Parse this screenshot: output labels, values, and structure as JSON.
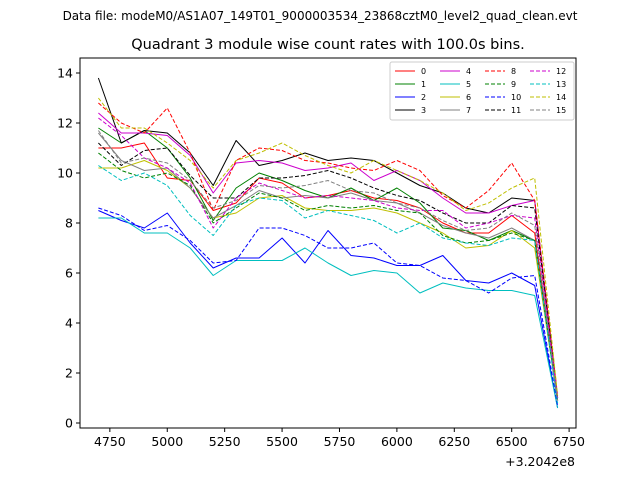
{
  "chart_data": {
    "type": "line",
    "suptitle": "Data file: modeM0/AS1A07_149T01_9000003534_23868cztM0_level2_quad_clean.evt",
    "title": "Quadrant 3 module wise count rates with 100.0s bins.",
    "xlabel": "",
    "ylabel": "",
    "x_offset_label": "+3.2042e8",
    "xlim": [
      4620,
      6780
    ],
    "ylim": [
      -0.2,
      14.6
    ],
    "xticks": [
      4750,
      5000,
      5250,
      5500,
      5750,
      6000,
      6250,
      6500,
      6750
    ],
    "yticks": [
      0,
      2,
      4,
      6,
      8,
      10,
      12,
      14
    ],
    "grid": false,
    "legend_position": "top-right",
    "legend_columns": 4,
    "x": [
      4700,
      4800,
      4900,
      5000,
      5100,
      5200,
      5300,
      5400,
      5500,
      5600,
      5700,
      5800,
      5900,
      6000,
      6100,
      6200,
      6300,
      6400,
      6500,
      6600,
      6700
    ],
    "series": [
      {
        "name": "0",
        "color": "#ff0000",
        "style": "solid",
        "values": [
          11.0,
          11.0,
          11.2,
          9.8,
          9.7,
          8.5,
          8.8,
          9.8,
          9.6,
          9.0,
          9.1,
          9.3,
          9.0,
          8.9,
          8.6,
          8.0,
          7.6,
          7.6,
          8.3,
          7.6,
          0.9
        ]
      },
      {
        "name": "1",
        "color": "#008000",
        "style": "solid",
        "values": [
          11.8,
          11.2,
          11.7,
          11.0,
          9.8,
          8.1,
          9.4,
          10.0,
          9.7,
          9.3,
          9.0,
          9.4,
          8.9,
          9.4,
          8.8,
          7.8,
          7.7,
          7.3,
          7.7,
          7.3,
          0.9
        ]
      },
      {
        "name": "2",
        "color": "#0000ff",
        "style": "solid",
        "values": [
          8.5,
          8.1,
          7.8,
          8.4,
          7.2,
          6.2,
          6.6,
          6.6,
          7.4,
          6.4,
          7.7,
          6.7,
          6.6,
          6.3,
          6.3,
          6.7,
          5.7,
          5.6,
          6.0,
          5.5,
          0.6
        ]
      },
      {
        "name": "3",
        "color": "#000000",
        "style": "solid",
        "values": [
          13.8,
          11.2,
          11.7,
          11.6,
          10.8,
          9.5,
          11.3,
          10.3,
          10.5,
          10.8,
          10.5,
          10.6,
          10.5,
          10.0,
          9.5,
          9.2,
          8.6,
          8.4,
          9.0,
          8.9,
          1.0
        ]
      },
      {
        "name": "4",
        "color": "#cc00cc",
        "style": "solid",
        "values": [
          12.4,
          11.6,
          11.6,
          11.5,
          10.7,
          9.2,
          10.4,
          10.5,
          10.4,
          10.1,
          10.2,
          10.4,
          9.7,
          10.1,
          9.7,
          9.0,
          8.4,
          8.4,
          8.7,
          8.9,
          1.0
        ]
      },
      {
        "name": "5",
        "color": "#00bfbf",
        "style": "solid",
        "values": [
          8.2,
          8.2,
          7.6,
          7.6,
          7.0,
          5.9,
          6.5,
          6.5,
          6.5,
          7.0,
          6.4,
          5.9,
          6.1,
          6.0,
          5.2,
          5.6,
          5.4,
          5.3,
          5.3,
          5.1,
          0.6
        ]
      },
      {
        "name": "6",
        "color": "#bfbf00",
        "style": "solid",
        "values": [
          10.2,
          10.2,
          10.5,
          10.1,
          9.4,
          8.2,
          8.4,
          9.0,
          9.1,
          8.6,
          8.5,
          8.5,
          8.6,
          8.4,
          8.0,
          7.6,
          7.0,
          7.1,
          7.7,
          7.0,
          0.9
        ]
      },
      {
        "name": "7",
        "color": "#808080",
        "style": "solid",
        "values": [
          11.6,
          10.5,
          10.1,
          10.2,
          9.4,
          8.2,
          8.7,
          9.3,
          9.0,
          9.1,
          9.0,
          9.2,
          8.9,
          8.8,
          8.4,
          7.9,
          7.6,
          7.4,
          7.8,
          7.3,
          0.9
        ]
      },
      {
        "name": "8",
        "color": "#ff0000",
        "style": "dashed",
        "values": [
          12.8,
          12.0,
          11.6,
          12.6,
          10.8,
          8.5,
          10.5,
          11.0,
          10.9,
          10.5,
          10.4,
          10.2,
          10.1,
          10.5,
          10.1,
          9.1,
          8.6,
          9.3,
          10.4,
          8.9,
          1.1
        ]
      },
      {
        "name": "9",
        "color": "#008000",
        "style": "dashed",
        "values": [
          10.8,
          10.1,
          9.8,
          10.0,
          9.5,
          8.0,
          8.6,
          9.2,
          9.0,
          8.5,
          8.7,
          8.6,
          8.7,
          8.5,
          8.4,
          7.5,
          7.2,
          7.3,
          7.6,
          7.3,
          0.9
        ]
      },
      {
        "name": "10",
        "color": "#0000ff",
        "style": "dashed",
        "values": [
          8.6,
          8.3,
          7.7,
          7.9,
          7.3,
          6.4,
          6.5,
          7.8,
          7.8,
          7.5,
          7.0,
          7.0,
          7.2,
          6.4,
          6.3,
          5.8,
          5.7,
          5.2,
          5.8,
          5.9,
          0.7
        ]
      },
      {
        "name": "11",
        "color": "#000000",
        "style": "dashed",
        "values": [
          11.2,
          10.3,
          10.9,
          11.0,
          9.9,
          9.0,
          9.0,
          9.8,
          9.8,
          9.9,
          10.1,
          9.8,
          9.4,
          9.1,
          8.9,
          8.4,
          8.0,
          8.0,
          8.7,
          8.6,
          1.0
        ]
      },
      {
        "name": "12",
        "color": "#cc00cc",
        "style": "dashed",
        "values": [
          12.2,
          11.5,
          10.6,
          10.2,
          9.6,
          7.8,
          9.0,
          9.6,
          9.3,
          9.0,
          9.1,
          9.0,
          8.9,
          8.6,
          8.5,
          8.5,
          7.8,
          8.0,
          8.3,
          8.2,
          1.0
        ]
      },
      {
        "name": "13",
        "color": "#00bfbf",
        "style": "dashed",
        "values": [
          10.3,
          9.7,
          10.0,
          9.5,
          8.3,
          7.5,
          8.7,
          9.0,
          8.9,
          8.2,
          8.5,
          8.3,
          8.1,
          7.6,
          8.0,
          7.4,
          7.2,
          7.1,
          7.4,
          7.3,
          0.8
        ]
      },
      {
        "name": "14",
        "color": "#bfbf00",
        "style": "dashed",
        "values": [
          13.0,
          11.8,
          11.8,
          11.2,
          10.5,
          9.4,
          10.5,
          10.8,
          11.2,
          10.7,
          10.3,
          10.0,
          10.5,
          10.1,
          9.7,
          9.2,
          8.5,
          8.8,
          9.4,
          9.8,
          1.1
        ]
      },
      {
        "name": "15",
        "color": "#808080",
        "style": "dashed",
        "values": [
          11.7,
          10.4,
          10.6,
          10.4,
          9.7,
          8.6,
          8.9,
          9.5,
          9.4,
          9.5,
          9.7,
          9.3,
          9.2,
          8.8,
          8.6,
          8.1,
          7.7,
          7.8,
          8.4,
          7.9,
          0.9
        ]
      }
    ]
  }
}
